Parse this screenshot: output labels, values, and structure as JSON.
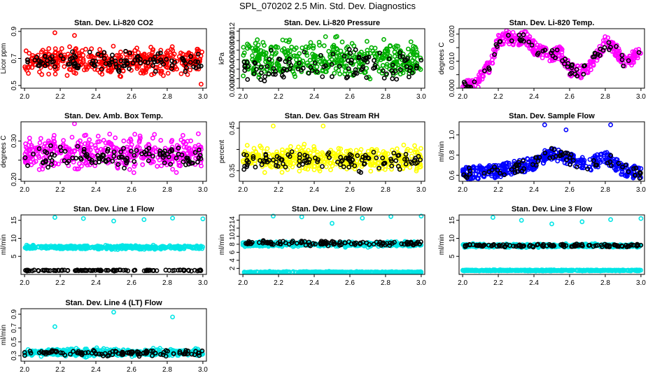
{
  "page_title": "SPL_070202  2.5 Min. Std. Dev. Diagnostics",
  "chart_data": [
    {
      "type": "scatter",
      "title": "Stan. Dev. Li-820 CO2",
      "ylabel": "Licor ppm",
      "xlim": [
        1.98,
        3.02
      ],
      "ylim": [
        0.48,
        0.92
      ],
      "xticks": [
        "2.0",
        "2.2",
        "2.4",
        "2.6",
        "2.8",
        "3.0"
      ],
      "yticks": [
        0.5,
        0.7,
        0.9
      ],
      "ytick_labels": [
        "0.5",
        "0.7",
        "0.9"
      ],
      "series": [
        {
          "color": "#ff0000",
          "values_y": {
            "min": 0.55,
            "max": 0.82,
            "mean": 0.68,
            "outliers": [
              [
                2.17,
                0.89
              ],
              [
                2.28,
                0.87
              ],
              [
                2.99,
                0.51
              ]
            ]
          }
        },
        {
          "color": "#000000",
          "values_y": {
            "min": 0.58,
            "max": 0.78,
            "mean": 0.67
          }
        }
      ]
    },
    {
      "type": "scatter",
      "title": "Stan. Dev. Li-820 Pressure",
      "ylabel": "kPa",
      "xlim": [
        1.98,
        3.02
      ],
      "ylim": [
        0.0,
        0.0125
      ],
      "xticks": [
        "2.0",
        "2.2",
        "2.4",
        "2.6",
        "2.8",
        "3.0"
      ],
      "yticks": [
        0.0,
        0.002,
        0.004,
        0.006,
        0.008,
        0.01,
        0.012
      ],
      "ytick_labels": [
        "0.000",
        "0.002",
        "0.004",
        "0.006",
        "0.008",
        "0.010",
        "0.012"
      ],
      "series": [
        {
          "color": "#00b000",
          "values_y": {
            "min": 0.0,
            "max": 0.0115,
            "mean": 0.006
          }
        },
        {
          "color": "#000000",
          "values_y": {
            "min": 0.0,
            "max": 0.009,
            "mean": 0.005
          }
        }
      ]
    },
    {
      "type": "scatter",
      "title": "Stan. Dev. Li-820 Temp.",
      "ylabel": "degrees C",
      "xlim": [
        1.98,
        3.02
      ],
      "ylim": [
        0.0,
        0.022
      ],
      "xticks": [
        "2.0",
        "2.2",
        "2.4",
        "2.6",
        "2.8",
        "3.0"
      ],
      "yticks": [
        0.0,
        0.005,
        0.01,
        0.015,
        0.02
      ],
      "ytick_labels": [
        "0.000",
        "",
        "0.010",
        "",
        "0.020"
      ],
      "series": [
        {
          "color": "#ff00ff",
          "trend": [
            [
              2.0,
              0.0005
            ],
            [
              2.07,
              0.0005
            ],
            [
              2.1,
              0.004
            ],
            [
              2.15,
              0.008
            ],
            [
              2.2,
              0.018
            ],
            [
              2.25,
              0.019
            ],
            [
              2.3,
              0.018
            ],
            [
              2.35,
              0.019
            ],
            [
              2.4,
              0.015
            ],
            [
              2.45,
              0.013
            ],
            [
              2.5,
              0.012
            ],
            [
              2.55,
              0.013
            ],
            [
              2.6,
              0.007
            ],
            [
              2.65,
              0.006
            ],
            [
              2.7,
              0.007
            ],
            [
              2.75,
              0.012
            ],
            [
              2.8,
              0.017
            ],
            [
              2.85,
              0.015
            ],
            [
              2.9,
              0.01
            ],
            [
              2.95,
              0.011
            ],
            [
              3.0,
              0.013
            ]
          ]
        },
        {
          "color": "#000000",
          "sparse": true
        }
      ]
    },
    {
      "type": "scatter",
      "title": "Stan. Dev. Amb. Box Temp.",
      "ylabel": "degrees C",
      "xlim": [
        1.98,
        3.02
      ],
      "ylim": [
        0.195,
        0.35
      ],
      "xticks": [
        "2.0",
        "2.2",
        "2.4",
        "2.6",
        "2.8",
        "3.0"
      ],
      "yticks": [
        0.2,
        0.25,
        0.3
      ],
      "ytick_labels": [
        "0.20",
        "",
        "0.30"
      ],
      "series": [
        {
          "color": "#ff00ff",
          "values_y": {
            "min": 0.21,
            "max": 0.33,
            "mean": 0.27,
            "outliers": [
              [
                2.28,
                0.345
              ]
            ]
          }
        },
        {
          "color": "#000000",
          "values_y": {
            "min": 0.22,
            "max": 0.3,
            "mean": 0.26
          }
        }
      ]
    },
    {
      "type": "scatter",
      "title": "Stan. Dev. Gas Stream RH",
      "ylabel": "percent",
      "xlim": [
        1.98,
        3.02
      ],
      "ylim": [
        0.325,
        0.465
      ],
      "xticks": [
        "2.0",
        "2.2",
        "2.4",
        "2.6",
        "2.8",
        "3.0"
      ],
      "yticks": [
        0.35,
        0.4,
        0.45
      ],
      "ytick_labels": [
        "0.35",
        "",
        "0.45"
      ],
      "series": [
        {
          "color": "#ffff00",
          "values_y": {
            "min": 0.34,
            "max": 0.42,
            "mean": 0.375,
            "outliers": [
              [
                2.17,
                0.455
              ],
              [
                2.45,
                0.455
              ]
            ]
          }
        },
        {
          "color": "#000000",
          "values_y": {
            "min": 0.345,
            "max": 0.41,
            "mean": 0.37
          }
        }
      ]
    },
    {
      "type": "scatter",
      "title": "Stan. Dev. Sample Flow",
      "ylabel": "ml/min",
      "xlim": [
        1.98,
        3.02
      ],
      "ylim": [
        0.54,
        1.13
      ],
      "xticks": [
        "2.0",
        "2.2",
        "2.4",
        "2.6",
        "2.8",
        "3.0"
      ],
      "yticks": [
        0.6,
        0.8,
        1.0
      ],
      "ytick_labels": [
        "0.6",
        "0.8",
        "1.0"
      ],
      "series": [
        {
          "color": "#0000ff",
          "trend": [
            [
              2.0,
              0.62
            ],
            [
              2.2,
              0.64
            ],
            [
              2.4,
              0.72
            ],
            [
              2.5,
              0.82
            ],
            [
              2.6,
              0.76
            ],
            [
              2.7,
              0.7
            ],
            [
              2.8,
              0.78
            ],
            [
              2.9,
              0.66
            ],
            [
              3.0,
              0.62
            ]
          ],
          "outliers": [
            [
              2.46,
              1.1
            ],
            [
              2.83,
              1.1
            ],
            [
              2.58,
              1.05
            ]
          ]
        },
        {
          "color": "#000000",
          "sparse": true
        }
      ]
    },
    {
      "type": "scatter",
      "title": "Stan. Dev. Line 1 Flow",
      "ylabel": "ml/min",
      "xlim": [
        1.98,
        3.02
      ],
      "ylim": [
        0,
        16.5
      ],
      "xticks": [
        "2.0",
        "2.2",
        "2.4",
        "2.6",
        "2.8",
        "3.0"
      ],
      "yticks": [
        5,
        10,
        15
      ],
      "ytick_labels": [
        "5",
        "10",
        "15"
      ],
      "series": [
        {
          "color": "#00e5e5",
          "values_y": {
            "min": 6.8,
            "max": 8.2,
            "mean": 7.5,
            "outliers": [
              [
                2.17,
                15.8
              ],
              [
                2.33,
                15.5
              ],
              [
                2.5,
                14.8
              ],
              [
                2.67,
                15.2
              ],
              [
                2.83,
                15.6
              ],
              [
                3.0,
                15.4
              ]
            ]
          }
        },
        {
          "color": "#000000",
          "values_y": {
            "min": 0.9,
            "max": 1.3,
            "mean": 1.1
          }
        }
      ]
    },
    {
      "type": "scatter",
      "title": "Stan. Dev. Line 2 Flow",
      "ylabel": "ml/min",
      "xlim": [
        1.98,
        3.02
      ],
      "ylim": [
        0.5,
        15.3
      ],
      "xticks": [
        "2.0",
        "2.2",
        "2.4",
        "2.6",
        "2.8",
        "3.0"
      ],
      "yticks": [
        2,
        4,
        6,
        8,
        10,
        12,
        14
      ],
      "ytick_labels": [
        "2",
        "4",
        "6",
        "8",
        "10",
        "12",
        "14"
      ],
      "series": [
        {
          "color": "#00e5e5",
          "values_y": {
            "min": 7.2,
            "max": 8.8,
            "mean": 8.0,
            "outliers": [
              [
                2.17,
                15.0
              ],
              [
                2.33,
                14.8
              ],
              [
                2.5,
                13.2
              ],
              [
                2.67,
                14.5
              ],
              [
                2.83,
                14.9
              ],
              [
                3.0,
                15.0
              ]
            ]
          }
        },
        {
          "color": "#00e5e5",
          "values_y": {
            "min": 0.8,
            "max": 1.3,
            "mean": 1.0
          }
        },
        {
          "color": "#000000",
          "values_y": {
            "min": 7.5,
            "max": 9.3,
            "mean": 8.2
          }
        }
      ]
    },
    {
      "type": "scatter",
      "title": "Stan. Dev. Line 3 Flow",
      "ylabel": "ml/min",
      "xlim": [
        1.98,
        3.02
      ],
      "ylim": [
        0,
        16.5
      ],
      "xticks": [
        "2.0",
        "2.2",
        "2.4",
        "2.6",
        "2.8",
        "3.0"
      ],
      "yticks": [
        5,
        10,
        15
      ],
      "ytick_labels": [
        "5",
        "10",
        "15"
      ],
      "series": [
        {
          "color": "#00e5e5",
          "values_y": {
            "min": 7.3,
            "max": 8.6,
            "mean": 8.0,
            "outliers": [
              [
                2.17,
                15.8
              ],
              [
                2.33,
                15.0
              ],
              [
                2.5,
                14.0
              ],
              [
                2.67,
                14.6
              ],
              [
                2.83,
                15.2
              ],
              [
                3.0,
                15.5
              ]
            ]
          }
        },
        {
          "color": "#00e5e5",
          "values_y": {
            "min": 0.9,
            "max": 1.3,
            "mean": 1.1
          }
        },
        {
          "color": "#000000",
          "values_y": {
            "min": 7.4,
            "max": 8.6,
            "mean": 8.0
          }
        }
      ]
    },
    {
      "type": "scatter",
      "title": "Stan. Dev. Line 4 (LT) Flow",
      "ylabel": "ml/min",
      "xlim": [
        1.98,
        3.02
      ],
      "ylim": [
        0.22,
        0.98
      ],
      "xticks": [
        "2.0",
        "2.2",
        "2.4",
        "2.6",
        "2.8",
        "3.0"
      ],
      "yticks": [
        0.3,
        0.5,
        0.7,
        0.9
      ],
      "ytick_labels": [
        "0.3",
        "0.5",
        "0.7",
        "0.9"
      ],
      "series": [
        {
          "color": "#00e5e5",
          "values_y": {
            "min": 0.27,
            "max": 0.42,
            "mean": 0.35,
            "outliers": [
              [
                2.17,
                0.72
              ],
              [
                2.5,
                0.93
              ],
              [
                2.83,
                0.86
              ]
            ]
          }
        },
        {
          "color": "#000000",
          "values_y": {
            "min": 0.28,
            "max": 0.4,
            "mean": 0.34
          }
        }
      ]
    }
  ]
}
